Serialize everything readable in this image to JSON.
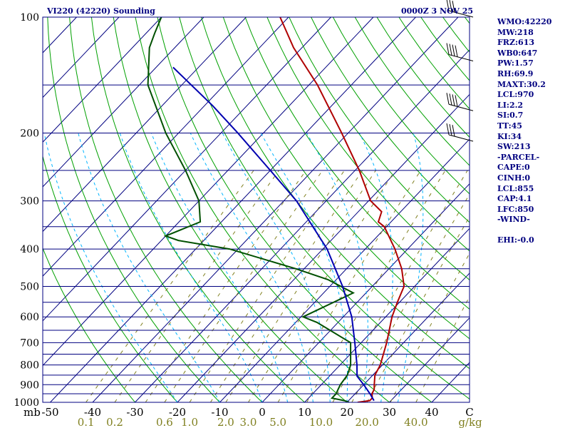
{
  "header": {
    "title_left": "VI220 (42220) Sounding",
    "title_right": "0000Z  3 NOV 25"
  },
  "indices": [
    "WMO:42220",
    "MW:218",
    "FRZ:613",
    "WB0:647",
    "PW:1.57",
    "RH:69.9",
    "MAXT:30.2",
    "LCL:970",
    "LI:2.2",
    "SI:0.7",
    "TT:45",
    "KI:34",
    "SW:213",
    "-PARCEL-",
    "CAPE:0",
    "CINH:0",
    "LCL:855",
    "CAP:4.1",
    "LFC:850",
    "-WIND-",
    "",
    "EHI:-0.0"
  ],
  "colors": {
    "frame": "#000080",
    "isobar": "#000080",
    "isotherm": "#000080",
    "dry_adiabat": "#00a000",
    "moist_adiabat": "#00b4ff",
    "mixing_ratio": "#808020",
    "temperature": "#b00000",
    "dewpoint": "#005000",
    "parcel": "#0000b0",
    "wind_barb": "#000000",
    "mixing_label": "#808020"
  },
  "chart_data": {
    "type": "line",
    "diagram": "skew-T log-P",
    "pressure_axis": {
      "unit_label": "mb",
      "scale": "log",
      "range": [
        1000,
        100
      ],
      "tick_labels": [
        "100",
        "200",
        "300",
        "400",
        "500",
        "600",
        "700",
        "800",
        "900",
        "1000"
      ],
      "ticks": [
        100,
        200,
        300,
        400,
        500,
        600,
        700,
        800,
        900,
        1000
      ]
    },
    "isobars": [
      100,
      150,
      200,
      250,
      300,
      350,
      400,
      450,
      500,
      550,
      600,
      650,
      700,
      750,
      800,
      850,
      900,
      950,
      1000
    ],
    "temperature_axis": {
      "unit_label": "C",
      "range": [
        -50,
        50
      ],
      "tick_labels": [
        "-50",
        "-40",
        "-30",
        "-20",
        "-10",
        "0",
        "10",
        "20",
        "30",
        "40"
      ],
      "ticks": [
        -50,
        -40,
        -30,
        -20,
        -10,
        0,
        10,
        20,
        30,
        40
      ]
    },
    "mixing_ratio_axis": {
      "unit_label": "g/kg",
      "tick_labels": [
        "0.1",
        "0.2",
        "0.6",
        "1.0",
        "2.0",
        "3.0",
        "5.0",
        "10.0",
        "20.0",
        "40.0"
      ],
      "ticks": [
        0.1,
        0.2,
        0.6,
        1.0,
        2.0,
        3.0,
        5.0,
        10.0,
        20.0,
        40.0
      ]
    },
    "series": [
      {
        "key": "temperature",
        "p": [
          1000,
          990,
          975,
          950,
          925,
          900,
          850,
          800,
          700,
          600,
          550,
          500,
          450,
          400,
          350,
          340,
          320,
          300,
          250,
          200,
          150,
          120,
          100
        ],
        "t": [
          22.5,
          25.0,
          25.0,
          24.0,
          23.5,
          22.5,
          20.5,
          19.5,
          16.0,
          11.5,
          9.5,
          7.5,
          3.0,
          -3.0,
          -10.5,
          -13.0,
          -14.5,
          -19.5,
          -29.0,
          -41.5,
          -58.0,
          -72.0,
          -82.0
        ]
      },
      {
        "key": "dewpoint",
        "p": [
          1000,
          990,
          975,
          950,
          925,
          900,
          850,
          800,
          700,
          620,
          600,
          580,
          520,
          480,
          450,
          400,
          380,
          370,
          340,
          300,
          250,
          200,
          150,
          120,
          110,
          100
        ],
        "t": [
          20.5,
          19.0,
          15.5,
          15.5,
          15.0,
          14.5,
          14.0,
          12.5,
          7.5,
          -5.0,
          -9.5,
          -8.0,
          -3.0,
          -12.0,
          -22.0,
          -42.0,
          -56.0,
          -60.0,
          -55.0,
          -60.0,
          -70.0,
          -83.0,
          -98.0,
          -106.0,
          -108.0,
          -110.0
        ]
      },
      {
        "key": "parcel",
        "p": [
          990,
          950,
          900,
          855,
          800,
          700,
          600,
          500,
          400,
          300,
          250,
          200,
          170,
          135
        ],
        "t": [
          26.0,
          23.5,
          20.0,
          16.5,
          14.0,
          8.5,
          2.0,
          -7.0,
          -19.0,
          -37.0,
          -50.0,
          -66.0,
          -78.0,
          -96.0
        ]
      }
    ],
    "wind_barbs": [
      {
        "p": 100,
        "speed_kt": 30,
        "dir_deg": 80
      },
      {
        "p": 130,
        "speed_kt": 40,
        "dir_deg": 85
      },
      {
        "p": 175,
        "speed_kt": 40,
        "dir_deg": 95
      },
      {
        "p": 210,
        "speed_kt": 30,
        "dir_deg": 105
      }
    ]
  }
}
